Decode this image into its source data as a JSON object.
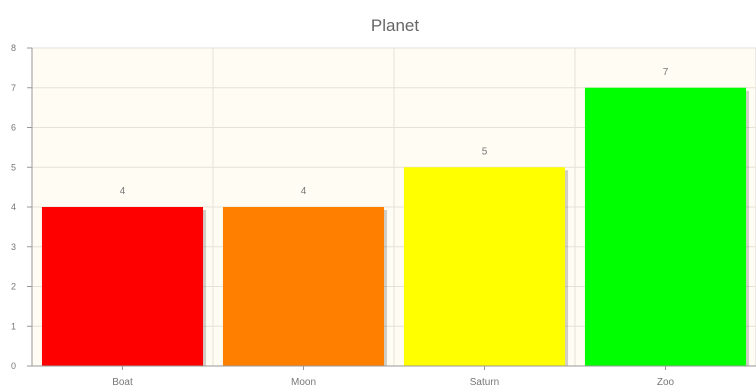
{
  "chart_data": {
    "type": "bar",
    "title": "Planet",
    "categories": [
      "Boat",
      "Moon",
      "Saturn",
      "Zoo"
    ],
    "values": [
      4,
      4,
      5,
      7
    ],
    "colors": [
      "#ff0000",
      "#ff8000",
      "#ffff00",
      "#00ff00"
    ],
    "ylim": [
      0,
      8
    ],
    "yticks": [
      "0",
      "1",
      "2",
      "3",
      "4",
      "5",
      "6",
      "7",
      "8"
    ],
    "grid": true,
    "plot_background": "#fffcf3",
    "data_labels": [
      "4",
      "4",
      "5",
      "7"
    ]
  }
}
